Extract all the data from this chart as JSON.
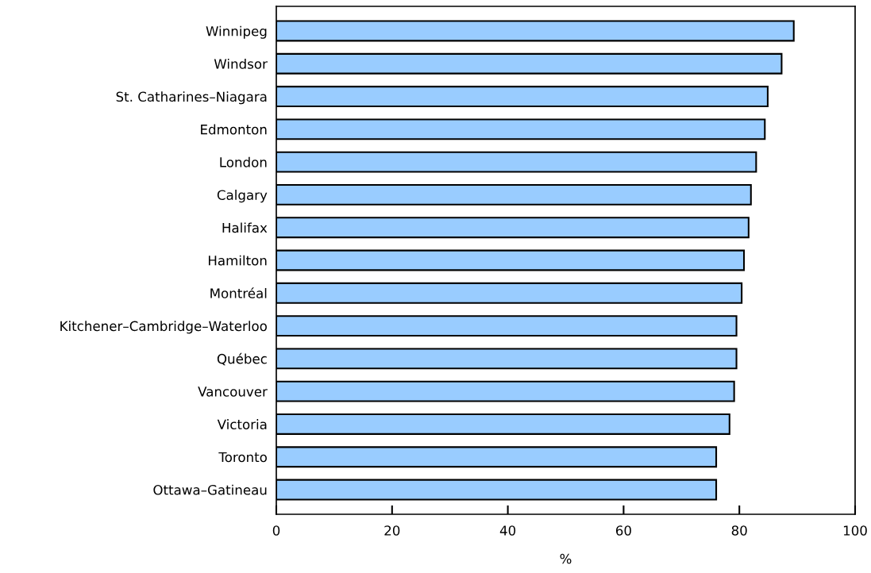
{
  "chart_data": {
    "type": "bar",
    "orientation": "horizontal",
    "xlabel": "%",
    "categories": [
      "Winnipeg",
      "Windsor",
      "St. Catharines–Niagara",
      "Edmonton",
      "London",
      "Calgary",
      "Halifax",
      "Hamilton",
      "Montréal",
      "Kitchener–Cambridge–Waterloo",
      "Québec",
      "Vancouver",
      "Victoria",
      "Toronto",
      "Ottawa–Gatineau"
    ],
    "values": [
      89.4,
      87.3,
      84.9,
      84.4,
      82.9,
      82.0,
      81.6,
      80.8,
      80.4,
      79.5,
      79.5,
      79.1,
      78.3,
      76.0,
      76.0
    ],
    "color": "#99ccff",
    "xlim": [
      0,
      100
    ],
    "xticks": [
      0,
      20,
      40,
      60,
      80,
      100
    ],
    "grid": false
  }
}
